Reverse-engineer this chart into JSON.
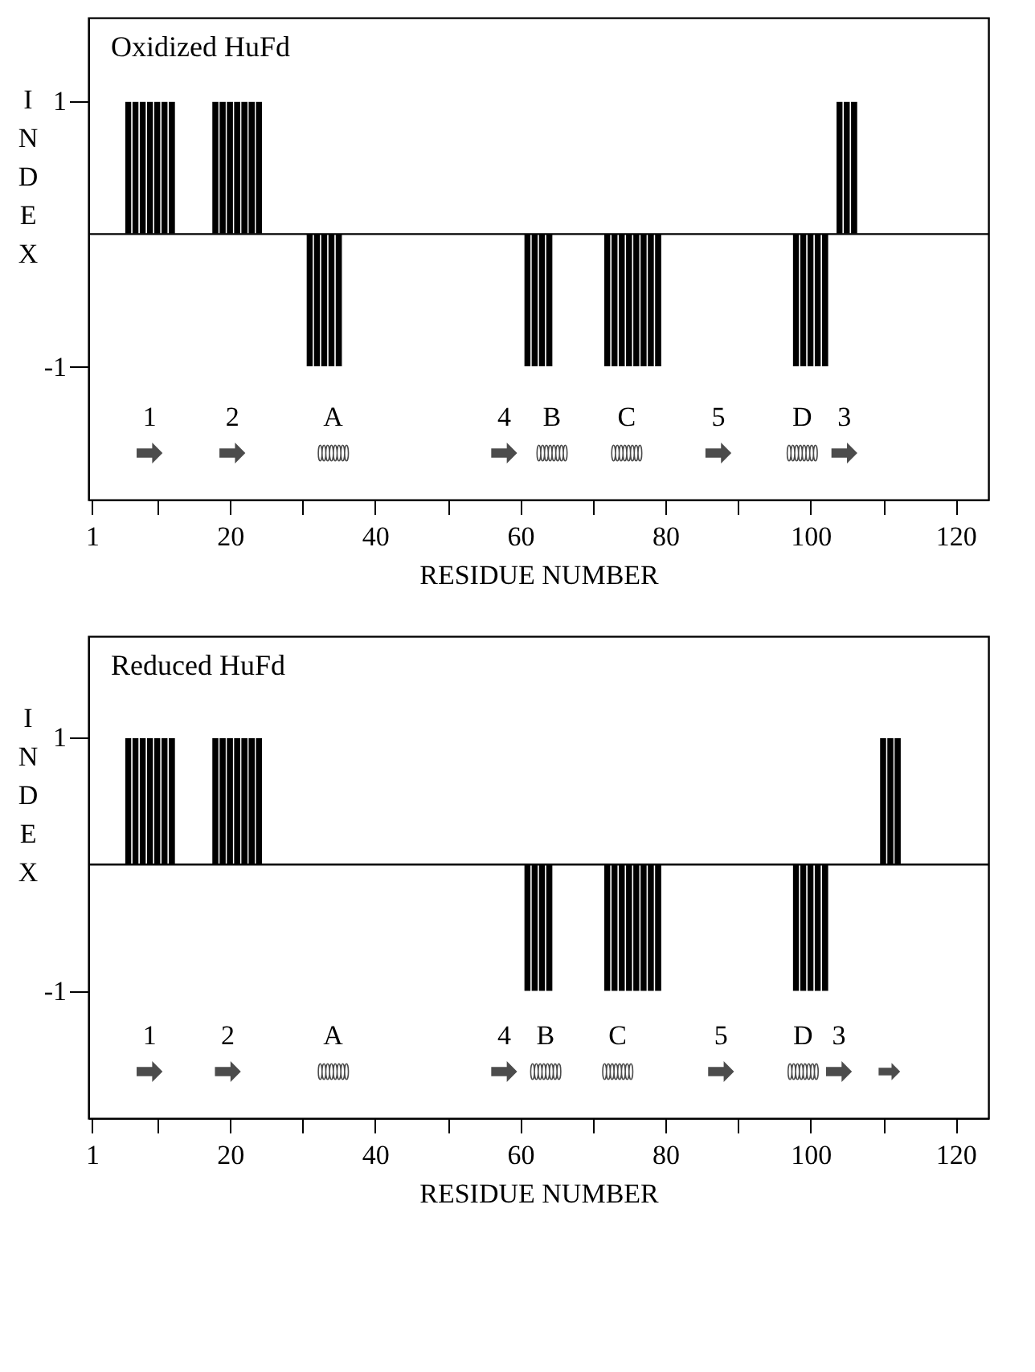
{
  "chart_data": [
    {
      "type": "bar",
      "title": "Oxidized HuFd",
      "xlabel": "RESIDUE NUMBER",
      "ylabel": "INDEX",
      "color": "#000000",
      "x": [
        6,
        7,
        8,
        9,
        10,
        11,
        12,
        18,
        19,
        20,
        21,
        22,
        23,
        24,
        31,
        32,
        33,
        34,
        35,
        61,
        62,
        63,
        64,
        72,
        73,
        74,
        75,
        76,
        77,
        78,
        79,
        98,
        99,
        100,
        101,
        102,
        104,
        105,
        106
      ],
      "values": [
        1,
        1,
        1,
        1,
        1,
        1,
        1,
        1,
        1,
        1,
        1,
        1,
        1,
        1,
        -1,
        -1,
        -1,
        -1,
        -1,
        -1,
        -1,
        -1,
        -1,
        -1,
        -1,
        -1,
        -1,
        -1,
        -1,
        -1,
        -1,
        -1,
        -1,
        -1,
        -1,
        -1,
        1,
        1,
        1
      ],
      "xlim": [
        0.5,
        124.5
      ],
      "ylim": [
        -2,
        1.63
      ],
      "xticks": [
        1,
        {
          "value": 10,
          "label": null
        },
        20,
        {
          "value": 30,
          "label": null
        },
        40,
        {
          "value": 50,
          "label": null
        },
        60,
        {
          "value": 70,
          "label": null
        },
        80,
        {
          "value": 90,
          "label": null
        },
        100,
        {
          "value": 110,
          "label": null
        },
        120
      ],
      "yticks": [
        1,
        -1
      ],
      "ref_lines": [
        {
          "axis": "y",
          "value": 0
        }
      ],
      "annotations": [
        "1",
        "2",
        "A",
        "4",
        "B",
        "C",
        "5",
        "D",
        "3"
      ],
      "grid": false
    },
    {
      "type": "bar",
      "title": "Reduced HuFd",
      "xlabel": "RESIDUE NUMBER",
      "ylabel": "INDEX",
      "color": "#000000",
      "x": [
        6,
        7,
        8,
        9,
        10,
        11,
        12,
        18,
        19,
        20,
        21,
        22,
        23,
        24,
        61,
        62,
        63,
        64,
        72,
        73,
        74,
        75,
        76,
        77,
        78,
        79,
        98,
        99,
        100,
        101,
        102,
        110,
        111,
        112
      ],
      "values": [
        1,
        1,
        1,
        1,
        1,
        1,
        1,
        1,
        1,
        1,
        1,
        1,
        1,
        1,
        -1,
        -1,
        -1,
        -1,
        -1,
        -1,
        -1,
        -1,
        -1,
        -1,
        -1,
        -1,
        -1,
        -1,
        -1,
        -1,
        -1,
        1,
        1,
        1
      ],
      "xlim": [
        0.5,
        124.5
      ],
      "ylim": [
        -2,
        1.8
      ],
      "xticks": [
        1,
        {
          "value": 10,
          "label": null
        },
        20,
        {
          "value": 30,
          "label": null
        },
        40,
        {
          "value": 50,
          "label": null
        },
        60,
        {
          "value": 70,
          "label": null
        },
        80,
        {
          "value": 90,
          "label": null
        },
        100,
        {
          "value": 110,
          "label": null
        },
        120
      ],
      "yticks": [
        1,
        -1
      ],
      "ref_lines": [
        {
          "axis": "y",
          "value": 0
        }
      ],
      "annotations": [
        "1",
        "2",
        "A",
        "4",
        "B",
        "C",
        "5",
        "D",
        "3"
      ],
      "grid": false
    }
  ]
}
